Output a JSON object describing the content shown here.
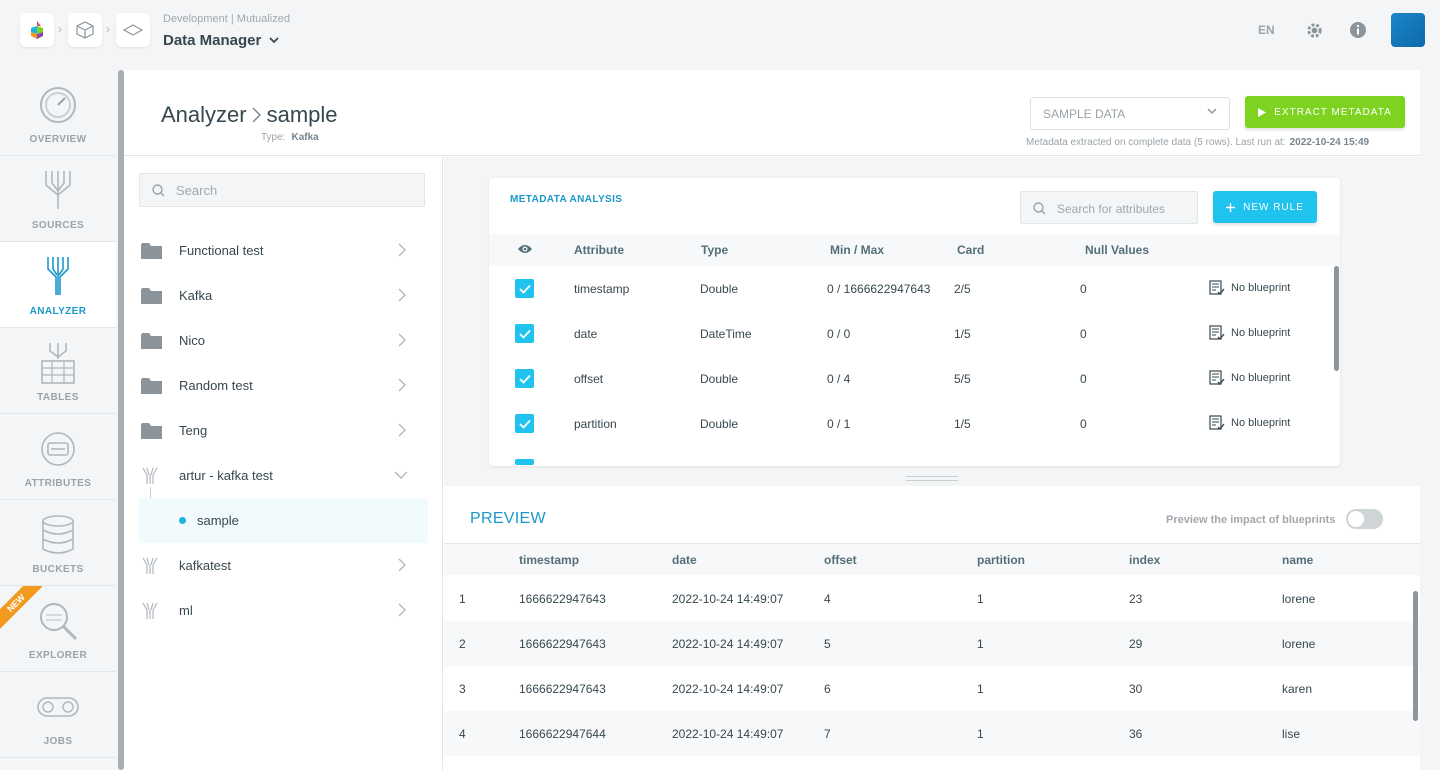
{
  "topbar": {
    "environment": "Development | Mutualized",
    "app_title": "Data Manager",
    "language": "EN",
    "icons": [
      "app-logo-icon",
      "project-cube-icon",
      "environment-icon",
      "chevron-down-icon",
      "gear-icon",
      "info-icon"
    ]
  },
  "nav": {
    "items": [
      {
        "label": "OVERVIEW",
        "icon": "gauge-icon"
      },
      {
        "label": "SOURCES",
        "icon": "sources-icon"
      },
      {
        "label": "ANALYZER",
        "icon": "analyzer-icon",
        "active": true
      },
      {
        "label": "TABLES",
        "icon": "tables-icon"
      },
      {
        "label": "ATTRIBUTES",
        "icon": "attributes-icon"
      },
      {
        "label": "BUCKETS",
        "icon": "database-icon"
      },
      {
        "label": "EXPLORER",
        "icon": "magnifier-icon",
        "badge": "NEW"
      },
      {
        "label": "JOBS",
        "icon": "jobs-icon"
      }
    ]
  },
  "page": {
    "title_root": "Analyzer",
    "title_leaf": "sample",
    "type_label": "Type:",
    "type_value": "Kafka",
    "sample_select": "SAMPLE DATA",
    "extract_button": "EXTRACT METADATA",
    "meta_note": "Metadata extracted on complete data (5 rows).  Last run at:",
    "meta_last_run": "2022-10-24 15:49"
  },
  "tree": {
    "search_placeholder": "Search",
    "items": [
      {
        "label": "Functional test",
        "icon": "folder-icon"
      },
      {
        "label": "Kafka",
        "icon": "folder-icon"
      },
      {
        "label": "Nico",
        "icon": "folder-icon"
      },
      {
        "label": "Random test",
        "icon": "folder-icon"
      },
      {
        "label": "Teng",
        "icon": "folder-icon"
      },
      {
        "label": "artur - kafka test",
        "icon": "funnel-icon",
        "expanded": true
      },
      {
        "label": "sample",
        "icon": "dot-icon",
        "selected": true
      },
      {
        "label": "kafkatest",
        "icon": "funnel-icon"
      },
      {
        "label": "ml",
        "icon": "funnel-icon"
      }
    ]
  },
  "metadata": {
    "title": "METADATA ANALYSIS",
    "search_placeholder": "Search for attributes",
    "new_rule_button": "NEW RULE",
    "columns": [
      "Attribute",
      "Type",
      "Min / Max",
      "Card",
      "Null Values"
    ],
    "rows": [
      {
        "attribute": "timestamp",
        "type": "Double",
        "minmax": "0 / 1666622947643",
        "card": "2/5",
        "nulls": "0",
        "blueprint": "No blueprint",
        "checked": true
      },
      {
        "attribute": "date",
        "type": "DateTime",
        "minmax": "0 / 0",
        "card": "1/5",
        "nulls": "0",
        "blueprint": "No blueprint",
        "checked": true
      },
      {
        "attribute": "offset",
        "type": "Double",
        "minmax": "0 / 4",
        "card": "5/5",
        "nulls": "0",
        "blueprint": "No blueprint",
        "checked": true
      },
      {
        "attribute": "partition",
        "type": "Double",
        "minmax": "0 / 1",
        "card": "1/5",
        "nulls": "0",
        "blueprint": "No blueprint",
        "checked": true
      }
    ]
  },
  "preview": {
    "title": "PREVIEW",
    "impact_label": "Preview the impact of blueprints",
    "impact_on": false,
    "columns": [
      "timestamp",
      "date",
      "offset",
      "partition",
      "index",
      "name"
    ],
    "rows": [
      {
        "n": "1",
        "timestamp": "1666622947643",
        "date": "2022-10-24 14:49:07",
        "offset": "4",
        "partition": "1",
        "index": "23",
        "name": "lorene"
      },
      {
        "n": "2",
        "timestamp": "1666622947643",
        "date": "2022-10-24 14:49:07",
        "offset": "5",
        "partition": "1",
        "index": "29",
        "name": "lorene"
      },
      {
        "n": "3",
        "timestamp": "1666622947643",
        "date": "2022-10-24 14:49:07",
        "offset": "6",
        "partition": "1",
        "index": "30",
        "name": "karen"
      },
      {
        "n": "4",
        "timestamp": "1666622947644",
        "date": "2022-10-24 14:49:07",
        "offset": "7",
        "partition": "1",
        "index": "36",
        "name": "lise"
      }
    ]
  },
  "colors": {
    "accent": "#1b98c9",
    "extract_green": "#7ed321",
    "new_rule_cyan": "#1fc3ee",
    "new_badge": "#f29a1f"
  }
}
